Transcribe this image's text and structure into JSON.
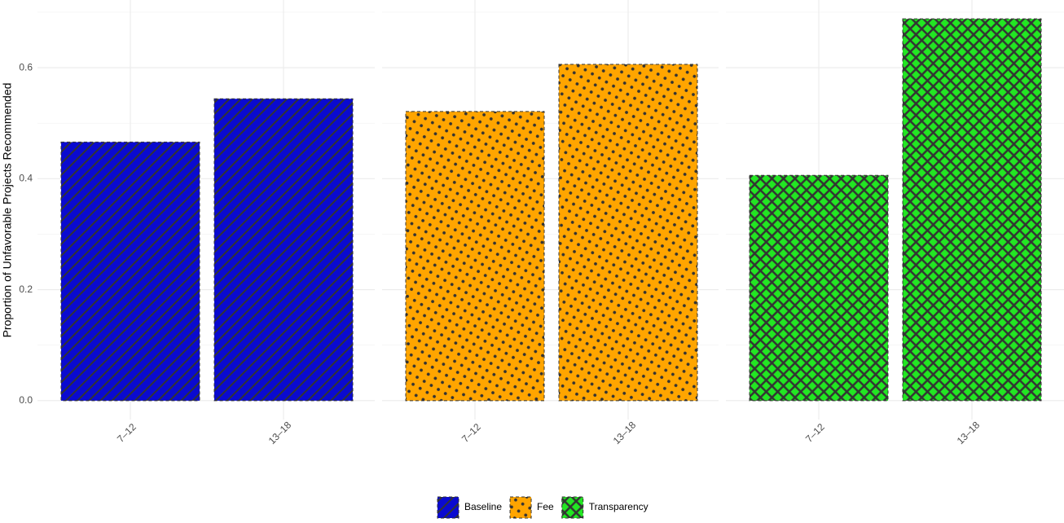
{
  "chart_data": {
    "type": "bar",
    "y_label": "Proportion of Unfavorable Projects Recommended",
    "categories": [
      "7‒12",
      "13‒18"
    ],
    "series": [
      {
        "name": "Baseline",
        "color": "#0a0ad0",
        "pattern": "stripe",
        "values": [
          0.466,
          0.544
        ]
      },
      {
        "name": "Fee",
        "color": "#ffa500",
        "pattern": "dots",
        "values": [
          0.521,
          0.606
        ]
      },
      {
        "name": "Transparency",
        "color": "#22e622",
        "pattern": "crosshatch",
        "values": [
          0.406,
          0.688
        ]
      }
    ],
    "ylim": [
      -0.034,
      0.722
    ],
    "yticks": [
      {
        "value": 0,
        "label": "0.0"
      },
      0.2,
      0.4,
      0.6
    ],
    "minor_yticks": [
      0.1,
      0.3,
      0.5,
      0.7
    ],
    "grid": true,
    "legend": "bottom"
  }
}
